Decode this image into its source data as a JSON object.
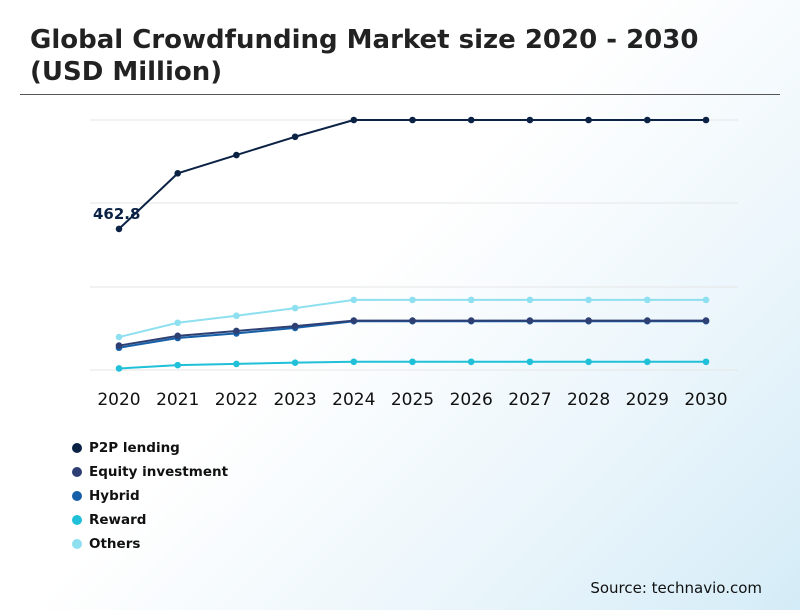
{
  "title": "Global Crowdfunding Market size 2020 - 2030 (USD Million)",
  "source": "Source: technavio.com",
  "chart_data": {
    "type": "line",
    "title": "Global Crowdfunding Market size 2020 - 2030 (USD Million)",
    "x": [
      "2020",
      "2021",
      "2022",
      "2023",
      "2024",
      "2025",
      "2026",
      "2027",
      "2028",
      "2029",
      "2030"
    ],
    "ylim": [
      0,
      900
    ],
    "grid": true,
    "legend": "bottom-left",
    "annotations": [
      {
        "series": "P2P lending",
        "x": "2020",
        "text": "462.8"
      }
    ],
    "series": [
      {
        "name": "P2P lending",
        "color": "#0b2245",
        "values": [
          462.8,
          645,
          705,
          765,
          820,
          820,
          820,
          820,
          820,
          820,
          820
        ]
      },
      {
        "name": "Equity investment",
        "color": "#2e3f73",
        "values": [
          80,
          112,
          128,
          144,
          162,
          162,
          162,
          162,
          162,
          162,
          162
        ]
      },
      {
        "name": "Hybrid",
        "color": "#1560a8",
        "values": [
          73,
          105,
          120,
          138,
          160,
          160,
          160,
          160,
          160,
          160,
          160
        ]
      },
      {
        "name": "Reward",
        "color": "#1fc0d8",
        "values": [
          5,
          16,
          20,
          24,
          27,
          27,
          27,
          27,
          27,
          27,
          27
        ]
      },
      {
        "name": "Others",
        "color": "#8ee0f0",
        "values": [
          108,
          155,
          178,
          203,
          230,
          230,
          230,
          230,
          230,
          230,
          230
        ]
      }
    ]
  }
}
